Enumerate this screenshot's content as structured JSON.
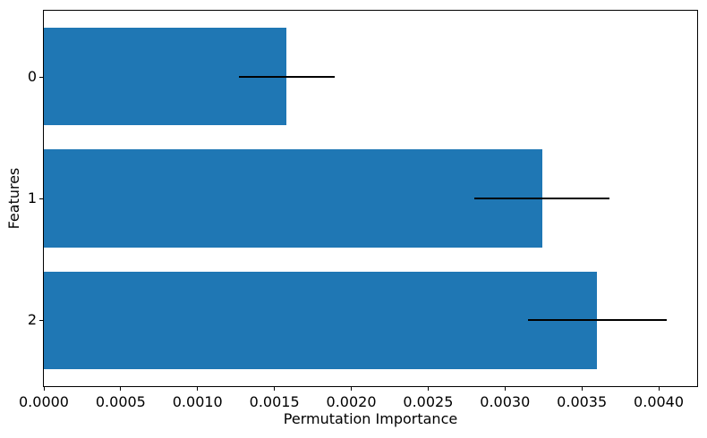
{
  "chart_data": {
    "type": "bar",
    "orientation": "horizontal",
    "title": "",
    "xlabel": "Permutation Importance",
    "ylabel": "Features",
    "categories": [
      "0",
      "1",
      "2"
    ],
    "values": [
      0.00158,
      0.00324,
      0.0036
    ],
    "error_bars": [
      0.00031,
      0.00044,
      0.00045
    ],
    "xlim": [
      0,
      0.00425
    ],
    "xtick_values": [
      0.0,
      0.0005,
      0.001,
      0.0015,
      0.002,
      0.0025,
      0.003,
      0.0035,
      0.004
    ],
    "xtick_labels": [
      "0.0000",
      "0.0005",
      "0.0010",
      "0.0015",
      "0.0020",
      "0.0025",
      "0.0030",
      "0.0035",
      "0.0040"
    ],
    "bar_color": "#1f77b4",
    "error_color": "#000000",
    "bar_height_fraction": 0.8,
    "grid": false,
    "legend": null
  }
}
